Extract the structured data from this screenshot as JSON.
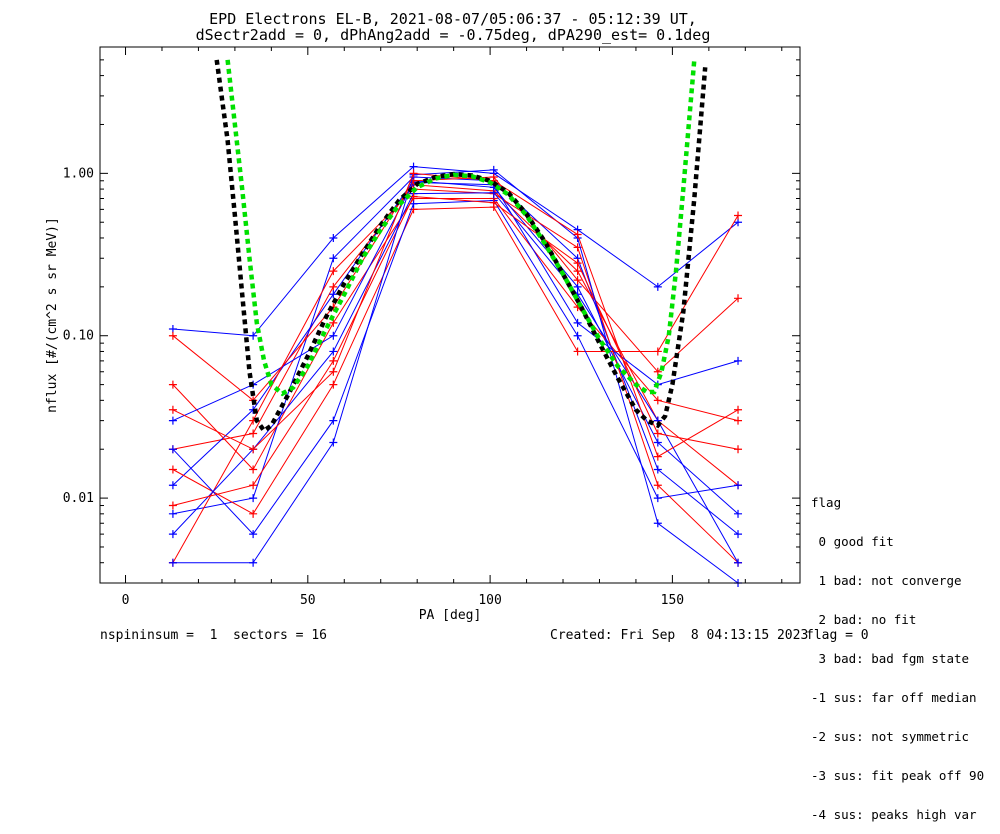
{
  "chart_data": {
    "type": "line",
    "title": "EPD Electrons EL-B, 2021-08-07/05:06:37 - 05:12:39 UT,",
    "subtitle": "dSectr2add = 0, dPhAng2add = -0.75deg, dPA290_est=   0.1deg",
    "xlabel": "PA [deg]",
    "ylabel": "nflux [#/(cm^2 s sr MeV)]",
    "xlim": [
      -7,
      185
    ],
    "ylim": [
      0.003,
      6.0
    ],
    "yscale": "log",
    "x_ticks": [
      "0",
      "50",
      "100",
      "150"
    ],
    "x_tick_values": [
      0,
      50,
      100,
      150
    ],
    "y_ticks": [
      "0.01",
      "0.10",
      "1.00"
    ],
    "y_tick_values": [
      0.01,
      0.1,
      1.0
    ],
    "pa_bins": [
      13,
      35,
      57,
      79,
      101,
      124,
      146,
      168
    ],
    "series": [
      {
        "color": "#ff0000",
        "values": [
          0.02,
          0.025,
          0.2,
          0.85,
          0.78,
          0.25,
          0.03,
          0.012
        ]
      },
      {
        "color": "#0000ff",
        "values": [
          0.012,
          0.035,
          0.18,
          0.9,
          0.82,
          0.2,
          0.022,
          0.008
        ]
      },
      {
        "color": "#ff0000",
        "values": [
          0.05,
          0.015,
          0.12,
          0.7,
          0.7,
          0.15,
          0.04,
          0.03
        ]
      },
      {
        "color": "#0000ff",
        "values": [
          0.008,
          0.01,
          0.3,
          0.95,
          0.9,
          0.3,
          0.015,
          0.006
        ]
      },
      {
        "color": "#0000ff",
        "values": [
          0.11,
          0.1,
          0.4,
          1.1,
          1.0,
          0.45,
          0.2,
          0.5
        ]
      },
      {
        "color": "#ff0000",
        "values": [
          0.004,
          0.03,
          0.25,
          0.8,
          0.75,
          0.35,
          0.012,
          0.004
        ]
      },
      {
        "color": "#0000ff",
        "values": [
          0.03,
          0.05,
          0.1,
          0.88,
          0.85,
          0.12,
          0.05,
          0.07
        ]
      },
      {
        "color": "#ff0000",
        "values": [
          0.015,
          0.008,
          0.05,
          0.6,
          0.62,
          0.08,
          0.08,
          0.55
        ]
      },
      {
        "color": "#0000ff",
        "values": [
          0.006,
          0.02,
          0.08,
          0.75,
          0.76,
          0.18,
          0.03,
          0.004
        ]
      },
      {
        "color": "#ff0000",
        "values": [
          0.1,
          0.04,
          0.15,
          0.9,
          0.95,
          0.22,
          0.06,
          0.17
        ]
      },
      {
        "color": "#0000ff",
        "values": [
          0.02,
          0.006,
          0.03,
          0.65,
          0.68,
          0.1,
          0.01,
          0.012
        ]
      },
      {
        "color": "#ff0000",
        "values": [
          0.009,
          0.012,
          0.07,
          0.72,
          0.66,
          0.28,
          0.025,
          0.02
        ]
      },
      {
        "color": "#0000ff",
        "values": [
          0.004,
          0.004,
          0.022,
          0.98,
          1.05,
          0.4,
          0.007,
          0.003
        ]
      },
      {
        "color": "#ff0000",
        "values": [
          0.035,
          0.02,
          0.06,
          1.0,
          0.9,
          0.42,
          0.018,
          0.035
        ]
      }
    ],
    "fit_curves": [
      {
        "color": "#000000",
        "x": [
          25,
          28,
          30,
          32,
          34,
          36,
          38,
          40,
          45,
          50,
          55,
          60,
          65,
          70,
          75,
          80,
          85,
          90,
          95,
          100,
          105,
          110,
          115,
          120,
          125,
          130,
          135,
          140,
          143,
          146,
          148,
          150,
          153,
          156,
          159
        ],
        "y": [
          5.0,
          1.6,
          0.55,
          0.18,
          0.06,
          0.03,
          0.026,
          0.028,
          0.045,
          0.075,
          0.13,
          0.21,
          0.32,
          0.48,
          0.68,
          0.86,
          0.95,
          0.99,
          0.97,
          0.9,
          0.76,
          0.56,
          0.38,
          0.24,
          0.15,
          0.09,
          0.055,
          0.035,
          0.03,
          0.028,
          0.032,
          0.05,
          0.14,
          0.7,
          4.5
        ]
      },
      {
        "color": "#00e000",
        "x": [
          28,
          30,
          32,
          34,
          36,
          38,
          40,
          43,
          46,
          50,
          55,
          60,
          65,
          70,
          75,
          80,
          85,
          90,
          95,
          100,
          105,
          110,
          115,
          120,
          125,
          130,
          135,
          140,
          143,
          145,
          147,
          149,
          151,
          153,
          156
        ],
        "y": [
          5.0,
          2.0,
          0.8,
          0.3,
          0.12,
          0.07,
          0.05,
          0.044,
          0.048,
          0.065,
          0.11,
          0.18,
          0.3,
          0.45,
          0.64,
          0.82,
          0.93,
          0.98,
          0.96,
          0.88,
          0.74,
          0.55,
          0.37,
          0.24,
          0.15,
          0.095,
          0.065,
          0.05,
          0.045,
          0.045,
          0.06,
          0.1,
          0.25,
          0.8,
          5.0
        ]
      }
    ],
    "annotations": [
      "nspininsum =  1  sectors = 16",
      "Created: Fri Sep  8 04:13:15 2023",
      "flag = 0"
    ],
    "legend_title": "flag",
    "legend": [
      " 0 good fit",
      " 1 bad: not converge",
      " 2 bad: no fit",
      " 3 bad: bad fgm state",
      "-1 sus: far off median",
      "-2 sus: not symmetric",
      "-3 sus: fit peak off 90",
      "-4 sus: peaks high var"
    ],
    "legend_placement": "outside right, bottom",
    "grid": false
  }
}
